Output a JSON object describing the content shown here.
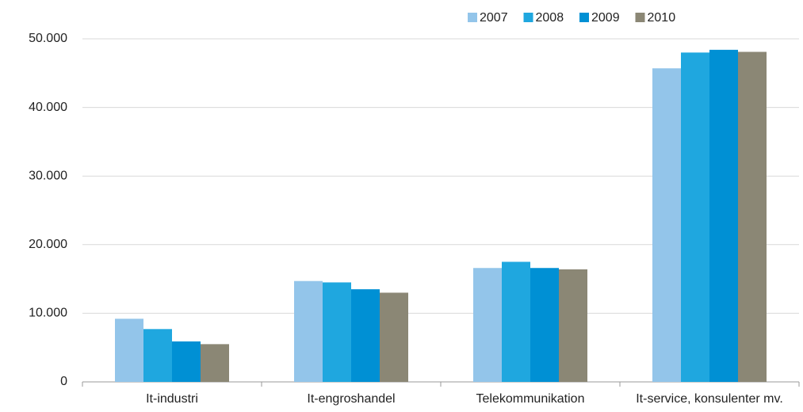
{
  "chart_data": {
    "type": "bar",
    "categories": [
      "It-industri",
      "It-engroshandel",
      "Telekommunikation",
      "It-service, konsulenter mv."
    ],
    "series": [
      {
        "name": "2007",
        "color": "#93c5ea",
        "values": [
          9200,
          14700,
          16600,
          45700
        ]
      },
      {
        "name": "2008",
        "color": "#1fa7df",
        "values": [
          7700,
          14500,
          17500,
          48000
        ]
      },
      {
        "name": "2009",
        "color": "#0090d4",
        "values": [
          5900,
          13500,
          16600,
          48400
        ]
      },
      {
        "name": "2010",
        "color": "#8b8775",
        "values": [
          5500,
          13000,
          16400,
          48100
        ]
      }
    ],
    "ylim": [
      0,
      50000
    ],
    "yticks": [
      0,
      {
        "value": 10000,
        "label": "10.000"
      },
      {
        "value": 20000,
        "label": "20.000"
      },
      {
        "value": 30000,
        "label": "30.000"
      },
      {
        "value": 40000,
        "label": "40.000"
      },
      {
        "value": 50000,
        "label": "50.000"
      }
    ],
    "grid": true,
    "legend": "top-right"
  }
}
